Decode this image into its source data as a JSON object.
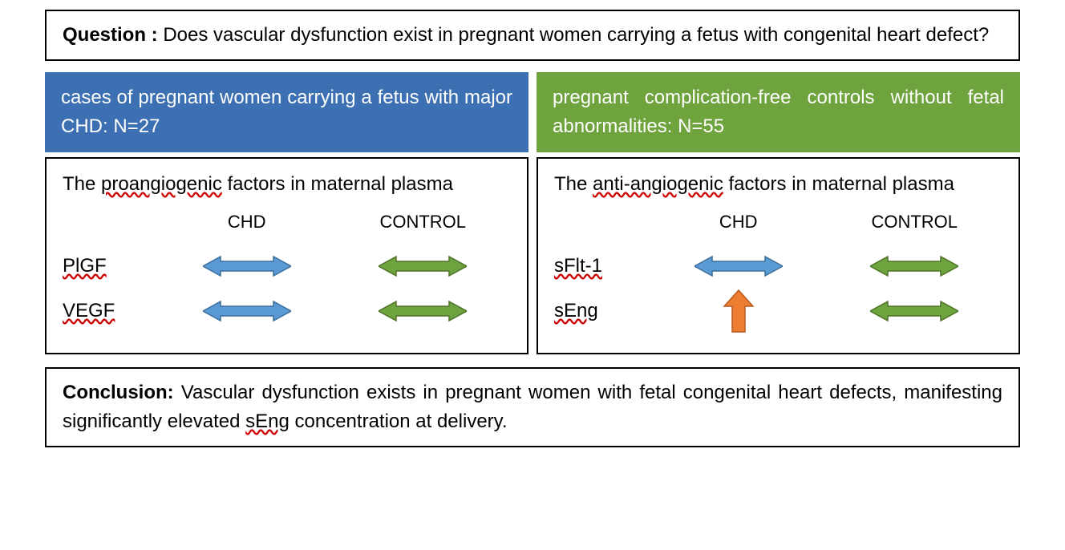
{
  "question": {
    "label": "Question : ",
    "text": "Does vascular dysfunction exist in pregnant women carrying a fetus with congenital heart defect?"
  },
  "groups": {
    "cases": {
      "text_prefix": "cases of pregnant women carrying a fetus with major CHD: ",
      "n_label": "N=27",
      "bg_color": "#3d70b2"
    },
    "controls": {
      "text_prefix": "pregnant complication-free controls without fetal abnormalities",
      "colon": ": ",
      "n_label": "N=55",
      "bg_color": "#6fa33e"
    }
  },
  "panels": {
    "left": {
      "title_pre": "The ",
      "title_ul": "proangiogenic",
      "title_post": " factors in maternal plasma",
      "col_chd": "CHD",
      "col_ctrl": "CONTROL",
      "rows": [
        {
          "label": "PlGF",
          "chd_arrow": "double_blue",
          "ctrl_arrow": "double_green"
        },
        {
          "label": "VEGF",
          "chd_arrow": "double_blue",
          "ctrl_arrow": "double_green"
        }
      ]
    },
    "right": {
      "title_pre": "The ",
      "title_ul": "anti-angiogenic",
      "title_post": " factors in maternal plasma",
      "col_chd": "CHD",
      "col_ctrl": "CONTROL",
      "rows": [
        {
          "label": "sFlt-1",
          "chd_arrow": "double_blue",
          "ctrl_arrow": "double_green"
        },
        {
          "label": "sEng",
          "chd_arrow": "up_orange",
          "ctrl_arrow": "double_green"
        }
      ]
    }
  },
  "arrows": {
    "double_blue": {
      "fill": "#5b9bd5",
      "stroke": "#3b6e99"
    },
    "double_green": {
      "fill": "#6fa33e",
      "stroke": "#4e7228"
    },
    "up_orange": {
      "fill": "#ed7d31",
      "stroke": "#b85a1f"
    }
  },
  "conclusion": {
    "label": "Conclusion: ",
    "text_pre": "Vascular dysfunction exists in pregnant women with fetal congenital heart defects, manifesting significantly elevated ",
    "ul": "sEng",
    "text_post": " concentration at delivery."
  }
}
